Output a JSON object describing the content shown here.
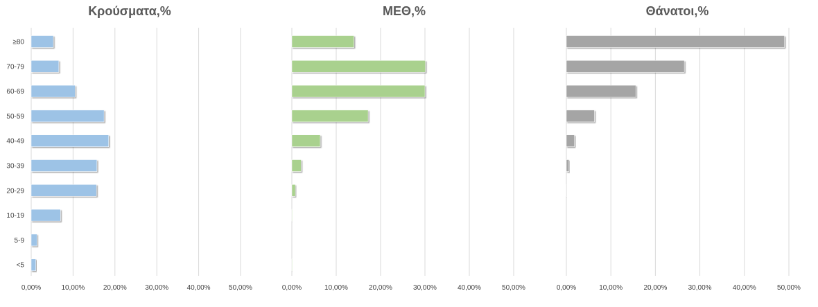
{
  "chart_data": [
    {
      "type": "bar",
      "orientation": "horizontal",
      "title": "Κρούσματα,%",
      "categories": [
        "≥80",
        "70-79",
        "60-69",
        "50-59",
        "40-49",
        "30-39",
        "20-29",
        "10-19",
        "5-9",
        "<5"
      ],
      "values": [
        5.3,
        6.6,
        10.5,
        17.4,
        18.5,
        15.7,
        15.6,
        7.0,
        1.4,
        1.1
      ],
      "xlim": [
        0,
        50
      ],
      "xticks": [
        0,
        10,
        20,
        30,
        40,
        50
      ],
      "xtick_labels": [
        "0,00%",
        "10,00%",
        "20,00%",
        "30,00%",
        "40,00%",
        "50,00%"
      ],
      "color": "#9dc3e6",
      "grid": true
    },
    {
      "type": "bar",
      "orientation": "horizontal",
      "title": "ΜΕΘ,%",
      "categories": [
        "≥80",
        "70-79",
        "60-69",
        "50-59",
        "40-49",
        "30-39",
        "20-29",
        "10-19",
        "5-9",
        "<5"
      ],
      "values": [
        14.0,
        30.1,
        30.0,
        17.2,
        6.4,
        2.1,
        0.8,
        0.1,
        0.0,
        0.1
      ],
      "xlim": [
        0,
        50
      ],
      "xticks": [
        0,
        10,
        20,
        30,
        40,
        50
      ],
      "xtick_labels": [
        "0,00%",
        "10,00%",
        "20,00%",
        "30,00%",
        "40,00%",
        "50,00%"
      ],
      "color": "#a9d18e",
      "grid": true
    },
    {
      "type": "bar",
      "orientation": "horizontal",
      "title": "Θάνατοι,%",
      "categories": [
        "≥80",
        "70-79",
        "60-69",
        "50-59",
        "40-49",
        "30-39",
        "20-29",
        "10-19",
        "5-9",
        "<5"
      ],
      "values": [
        49.0,
        26.5,
        15.6,
        6.3,
        1.8,
        0.6,
        0.1,
        0.0,
        0.0,
        0.0
      ],
      "xlim": [
        0,
        50
      ],
      "xticks": [
        0,
        10,
        20,
        30,
        40,
        50
      ],
      "xtick_labels": [
        "0,00%",
        "10,00%",
        "20,00%",
        "30,00%",
        "40,00%",
        "50,00%"
      ],
      "color": "#a5a5a5",
      "grid": true
    }
  ]
}
